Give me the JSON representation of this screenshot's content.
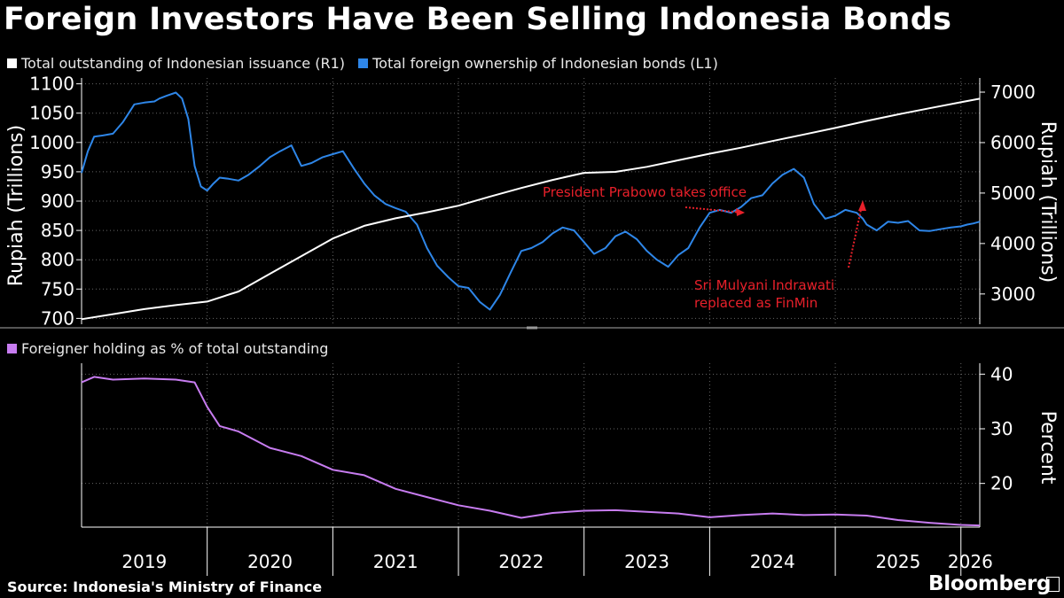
{
  "title": "Foreign Investors Have Been Selling Indonesia Bonds",
  "source": "Source: Indonesia's Ministry of Finance",
  "brand": "Bloomberg",
  "colors": {
    "issuance": "#ffffff",
    "foreign": "#2e86e8",
    "percent": "#c77cf0",
    "annotation": "#e8202a",
    "grid": "#666666"
  },
  "chart_data": [
    {
      "type": "line",
      "legend": [
        {
          "label": "Total outstanding of Indonesian issuance (R1)",
          "color": "#ffffff"
        },
        {
          "label": "Total foreign ownership of Indonesian bonds (L1)",
          "color": "#2e86e8"
        }
      ],
      "ylabel_left": "Rupiah (Trillions)",
      "ylabel_right": "Rupiah (Trillions)",
      "ylim_left": [
        690,
        1110
      ],
      "yticks_left": [
        700,
        750,
        800,
        850,
        900,
        950,
        1000,
        1050,
        1100
      ],
      "ylim_right": [
        2400,
        7000
      ],
      "yticks_right": [
        3000,
        4000,
        5000,
        6000,
        7000
      ],
      "series": [
        {
          "name": "Total foreign ownership of Indonesian bonds (L1)",
          "axis": "left",
          "color": "#2e86e8",
          "x": [
            2019.0,
            2019.05,
            2019.1,
            2019.17,
            2019.25,
            2019.33,
            2019.42,
            2019.5,
            2019.58,
            2019.62,
            2019.68,
            2019.75,
            2019.8,
            2019.85,
            2019.9,
            2019.95,
            2020.0,
            2020.05,
            2020.1,
            2020.17,
            2020.25,
            2020.33,
            2020.42,
            2020.5,
            2020.58,
            2020.67,
            2020.75,
            2020.83,
            2020.92,
            2021.0,
            2021.08,
            2021.17,
            2021.25,
            2021.33,
            2021.42,
            2021.5,
            2021.58,
            2021.67,
            2021.75,
            2021.83,
            2021.92,
            2022.0,
            2022.08,
            2022.17,
            2022.25,
            2022.33,
            2022.42,
            2022.5,
            2022.58,
            2022.67,
            2022.75,
            2022.83,
            2022.92,
            2023.0,
            2023.08,
            2023.17,
            2023.25,
            2023.33,
            2023.42,
            2023.5,
            2023.58,
            2023.67,
            2023.75,
            2023.83,
            2023.92,
            2024.0,
            2024.08,
            2024.17,
            2024.25,
            2024.33,
            2024.42,
            2024.5,
            2024.58,
            2024.67,
            2024.75,
            2024.83,
            2024.92,
            2025.0,
            2025.08,
            2025.17,
            2025.22,
            2025.25,
            2025.33,
            2025.42,
            2025.5,
            2025.58,
            2025.67,
            2025.75,
            2025.83,
            2025.92,
            2026.0,
            2026.05,
            2026.1,
            2026.15
          ],
          "values": [
            948,
            985,
            1010,
            1012,
            1015,
            1035,
            1065,
            1068,
            1070,
            1075,
            1080,
            1085,
            1075,
            1040,
            960,
            925,
            918,
            930,
            940,
            938,
            935,
            945,
            960,
            975,
            985,
            995,
            960,
            965,
            975,
            980,
            985,
            955,
            930,
            910,
            895,
            888,
            882,
            860,
            820,
            790,
            770,
            755,
            752,
            728,
            715,
            740,
            780,
            815,
            820,
            830,
            845,
            855,
            850,
            830,
            810,
            820,
            840,
            848,
            835,
            815,
            800,
            788,
            808,
            820,
            855,
            880,
            885,
            880,
            890,
            905,
            910,
            930,
            945,
            955,
            940,
            895,
            870,
            875,
            885,
            880,
            870,
            860,
            850,
            865,
            863,
            866,
            850,
            849,
            852,
            855,
            857,
            860,
            862,
            865
          ],
          "values_in_reading": "approximate"
        },
        {
          "name": "Total outstanding of Indonesian issuance (R1)",
          "axis": "right",
          "color": "#ffffff",
          "x": [
            2019.0,
            2019.25,
            2019.5,
            2019.75,
            2020.0,
            2020.25,
            2020.5,
            2020.75,
            2021.0,
            2021.25,
            2021.5,
            2021.75,
            2022.0,
            2022.25,
            2022.5,
            2022.75,
            2023.0,
            2023.25,
            2023.5,
            2023.75,
            2024.0,
            2024.25,
            2024.5,
            2024.75,
            2025.0,
            2025.25,
            2025.5,
            2025.75,
            2026.0,
            2026.15
          ],
          "values": [
            2500,
            2600,
            2700,
            2780,
            2850,
            3050,
            3400,
            3750,
            4100,
            4350,
            4500,
            4620,
            4750,
            4930,
            5100,
            5260,
            5400,
            5420,
            5520,
            5650,
            5780,
            5900,
            6030,
            6160,
            6290,
            6430,
            6560,
            6680,
            6800,
            6870
          ]
        }
      ],
      "annotations": [
        {
          "text": "President Prabowo takes office"
        },
        {
          "text": "Sri Mulyani Indrawati"
        },
        {
          "text": "replaced as FinMin"
        }
      ]
    },
    {
      "type": "line",
      "legend": [
        {
          "label": "Foreigner holding as % of total outstanding",
          "color": "#c77cf0"
        }
      ],
      "ylabel_right": "Percent",
      "ylim_right": [
        12,
        42
      ],
      "yticks_right": [
        20,
        30,
        40
      ],
      "series": [
        {
          "name": "Foreigner holding as % of total outstanding",
          "axis": "right",
          "color": "#c77cf0",
          "x": [
            2019.0,
            2019.1,
            2019.25,
            2019.5,
            2019.75,
            2019.9,
            2020.0,
            2020.1,
            2020.25,
            2020.5,
            2020.75,
            2021.0,
            2021.25,
            2021.5,
            2021.75,
            2022.0,
            2022.25,
            2022.5,
            2022.75,
            2023.0,
            2023.25,
            2023.5,
            2023.75,
            2024.0,
            2024.25,
            2024.5,
            2024.75,
            2025.0,
            2025.25,
            2025.5,
            2025.75,
            2026.0,
            2026.15
          ],
          "values": [
            38.5,
            39.5,
            39,
            39.2,
            39,
            38.5,
            34,
            30.5,
            29.5,
            26.5,
            25,
            22.5,
            21.5,
            19,
            17.5,
            16,
            15,
            13.7,
            14.6,
            15,
            15.1,
            14.8,
            14.5,
            13.8,
            14.2,
            14.5,
            14.2,
            14.3,
            14.1,
            13.3,
            12.8,
            12.4,
            12.3
          ]
        }
      ],
      "xticks": [
        "2019",
        "2020",
        "2021",
        "2022",
        "2023",
        "2024",
        "2025",
        "2026"
      ]
    }
  ]
}
